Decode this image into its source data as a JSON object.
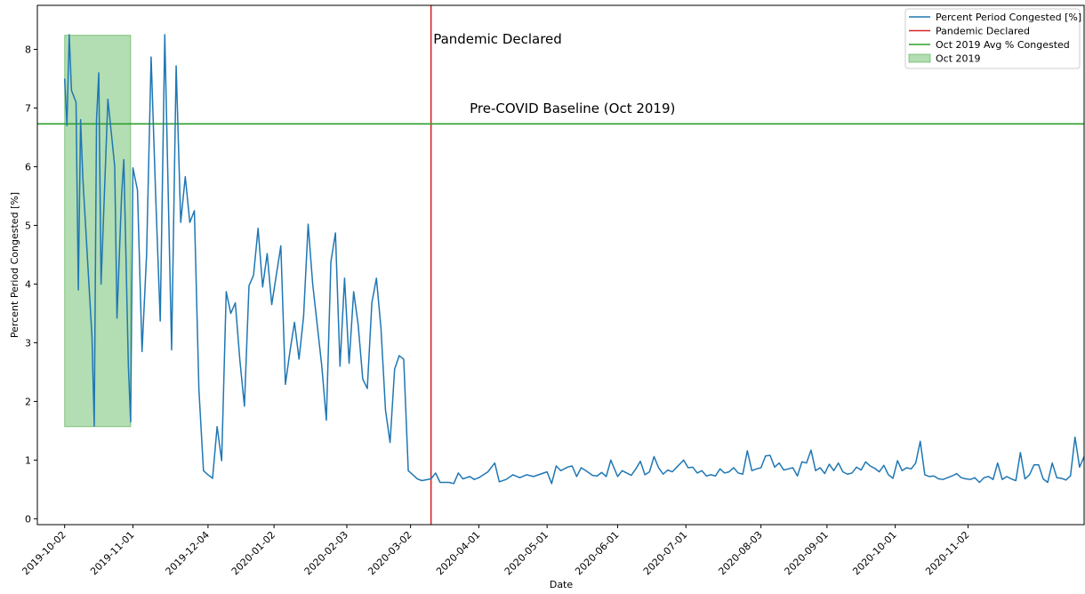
{
  "chart_data": {
    "type": "line",
    "title": "",
    "xlabel": "Date",
    "ylabel": "Percent Period Congested [%]",
    "xlim": [
      "2019-09-20",
      "2020-12-23"
    ],
    "ylim": [
      -0.1,
      8.75
    ],
    "grid": false,
    "legend_position": "top-right",
    "x_ticks": [
      "2019-10-02",
      "2019-11-01",
      "2019-12-04",
      "2020-01-02",
      "2020-02-03",
      "2020-03-02",
      "2020-04-01",
      "2020-05-01",
      "2020-06-01",
      "2020-07-01",
      "2020-08-03",
      "2020-09-01",
      "2020-10-01",
      "2020-11-02"
    ],
    "y_ticks": [
      0,
      1,
      2,
      3,
      4,
      5,
      6,
      7,
      8
    ],
    "series": [
      {
        "name": "Percent Period Congested [%]",
        "color": "#1f77b4",
        "points": [
          [
            "2019-10-02",
            7.5
          ],
          [
            "2019-10-03",
            6.7
          ],
          [
            "2019-10-04",
            8.25
          ],
          [
            "2019-10-05",
            7.3
          ],
          [
            "2019-10-07",
            7.1
          ],
          [
            "2019-10-08",
            3.9
          ],
          [
            "2019-10-09",
            6.8
          ],
          [
            "2019-10-10",
            5.8
          ],
          [
            "2019-10-14",
            3.1
          ],
          [
            "2019-10-15",
            1.58
          ],
          [
            "2019-10-16",
            6.8
          ],
          [
            "2019-10-17",
            7.6
          ],
          [
            "2019-10-18",
            4.0
          ],
          [
            "2019-10-21",
            7.15
          ],
          [
            "2019-10-24",
            6.0
          ],
          [
            "2019-10-25",
            3.42
          ],
          [
            "2019-10-27",
            5.5
          ],
          [
            "2019-10-28",
            6.12
          ],
          [
            "2019-10-30",
            2.6
          ],
          [
            "2019-10-31",
            1.65
          ],
          [
            "2019-11-01",
            5.98
          ],
          [
            "2019-11-03",
            5.6
          ],
          [
            "2019-11-05",
            2.85
          ],
          [
            "2019-11-07",
            4.5
          ],
          [
            "2019-11-09",
            7.87
          ],
          [
            "2019-11-11",
            5.5
          ],
          [
            "2019-11-13",
            3.37
          ],
          [
            "2019-11-15",
            8.25
          ],
          [
            "2019-11-18",
            2.88
          ],
          [
            "2019-11-20",
            7.72
          ],
          [
            "2019-11-22",
            5.05
          ],
          [
            "2019-11-24",
            5.83
          ],
          [
            "2019-11-26",
            5.05
          ],
          [
            "2019-11-28",
            5.25
          ],
          [
            "2019-11-30",
            2.2
          ],
          [
            "2019-12-02",
            0.82
          ],
          [
            "2019-12-04",
            0.75
          ],
          [
            "2019-12-06",
            0.69
          ],
          [
            "2019-12-08",
            1.57
          ],
          [
            "2019-12-10",
            0.99
          ],
          [
            "2019-12-12",
            3.87
          ],
          [
            "2019-12-14",
            3.5
          ],
          [
            "2019-12-16",
            3.68
          ],
          [
            "2019-12-18",
            2.7
          ],
          [
            "2019-12-20",
            1.92
          ],
          [
            "2019-12-22",
            3.97
          ],
          [
            "2019-12-24",
            4.15
          ],
          [
            "2019-12-26",
            4.95
          ],
          [
            "2019-12-28",
            3.95
          ],
          [
            "2019-12-30",
            4.52
          ],
          [
            "2020-01-01",
            3.65
          ],
          [
            "2020-01-03",
            4.15
          ],
          [
            "2020-01-05",
            4.65
          ],
          [
            "2020-01-07",
            2.29
          ],
          [
            "2020-01-09",
            2.85
          ],
          [
            "2020-01-11",
            3.35
          ],
          [
            "2020-01-13",
            2.72
          ],
          [
            "2020-01-15",
            3.45
          ],
          [
            "2020-01-17",
            5.02
          ],
          [
            "2020-01-19",
            4.0
          ],
          [
            "2020-01-21",
            3.3
          ],
          [
            "2020-01-23",
            2.6
          ],
          [
            "2020-01-25",
            1.68
          ],
          [
            "2020-01-27",
            4.38
          ],
          [
            "2020-01-29",
            4.87
          ],
          [
            "2020-01-31",
            2.6
          ],
          [
            "2020-02-02",
            4.1
          ],
          [
            "2020-02-04",
            2.65
          ],
          [
            "2020-02-06",
            3.87
          ],
          [
            "2020-02-08",
            3.3
          ],
          [
            "2020-02-10",
            2.38
          ],
          [
            "2020-02-12",
            2.22
          ],
          [
            "2020-02-14",
            3.68
          ],
          [
            "2020-02-16",
            4.1
          ],
          [
            "2020-02-18",
            3.25
          ],
          [
            "2020-02-20",
            1.85
          ],
          [
            "2020-02-22",
            1.3
          ],
          [
            "2020-02-24",
            2.55
          ],
          [
            "2020-02-26",
            2.78
          ],
          [
            "2020-02-28",
            2.72
          ],
          [
            "2020-03-01",
            0.82
          ],
          [
            "2020-03-05",
            0.68
          ],
          [
            "2020-03-07",
            0.65
          ],
          [
            "2020-03-11",
            0.68
          ],
          [
            "2020-03-13",
            0.78
          ],
          [
            "2020-03-15",
            0.62
          ],
          [
            "2020-03-19",
            0.62
          ],
          [
            "2020-03-21",
            0.6
          ],
          [
            "2020-03-23",
            0.78
          ],
          [
            "2020-03-25",
            0.68
          ],
          [
            "2020-03-28",
            0.72
          ],
          [
            "2020-03-30",
            0.67
          ],
          [
            "2020-04-01",
            0.7
          ],
          [
            "2020-04-05",
            0.8
          ],
          [
            "2020-04-08",
            0.95
          ],
          [
            "2020-04-10",
            0.63
          ],
          [
            "2020-04-13",
            0.67
          ],
          [
            "2020-04-16",
            0.75
          ],
          [
            "2020-04-19",
            0.7
          ],
          [
            "2020-04-22",
            0.75
          ],
          [
            "2020-04-25",
            0.72
          ],
          [
            "2020-04-28",
            0.76
          ],
          [
            "2020-05-01",
            0.8
          ],
          [
            "2020-05-03",
            0.6
          ],
          [
            "2020-05-05",
            0.9
          ],
          [
            "2020-05-07",
            0.82
          ],
          [
            "2020-05-10",
            0.88
          ],
          [
            "2020-05-12",
            0.9
          ],
          [
            "2020-05-14",
            0.72
          ],
          [
            "2020-05-16",
            0.87
          ],
          [
            "2020-05-18",
            0.82
          ],
          [
            "2020-05-21",
            0.74
          ],
          [
            "2020-05-23",
            0.73
          ],
          [
            "2020-05-25",
            0.79
          ],
          [
            "2020-05-27",
            0.72
          ],
          [
            "2020-05-29",
            1.0
          ],
          [
            "2020-06-01",
            0.72
          ],
          [
            "2020-06-03",
            0.82
          ],
          [
            "2020-06-05",
            0.78
          ],
          [
            "2020-06-07",
            0.74
          ],
          [
            "2020-06-09",
            0.85
          ],
          [
            "2020-06-11",
            0.98
          ],
          [
            "2020-06-13",
            0.75
          ],
          [
            "2020-06-15",
            0.8
          ],
          [
            "2020-06-17",
            1.06
          ],
          [
            "2020-06-19",
            0.87
          ],
          [
            "2020-06-21",
            0.76
          ],
          [
            "2020-06-23",
            0.83
          ],
          [
            "2020-06-25",
            0.8
          ],
          [
            "2020-06-27",
            0.88
          ],
          [
            "2020-06-30",
            1.0
          ],
          [
            "2020-07-02",
            0.87
          ],
          [
            "2020-07-04",
            0.88
          ],
          [
            "2020-07-06",
            0.78
          ],
          [
            "2020-07-08",
            0.82
          ],
          [
            "2020-07-10",
            0.73
          ],
          [
            "2020-07-12",
            0.75
          ],
          [
            "2020-07-14",
            0.73
          ],
          [
            "2020-07-16",
            0.85
          ],
          [
            "2020-07-18",
            0.78
          ],
          [
            "2020-07-20",
            0.8
          ],
          [
            "2020-07-22",
            0.87
          ],
          [
            "2020-07-24",
            0.78
          ],
          [
            "2020-07-26",
            0.76
          ],
          [
            "2020-07-28",
            1.16
          ],
          [
            "2020-07-30",
            0.82
          ],
          [
            "2020-08-01",
            0.85
          ],
          [
            "2020-08-03",
            0.87
          ],
          [
            "2020-08-05",
            1.07
          ],
          [
            "2020-08-07",
            1.08
          ],
          [
            "2020-08-09",
            0.88
          ],
          [
            "2020-08-11",
            0.95
          ],
          [
            "2020-08-13",
            0.83
          ],
          [
            "2020-08-15",
            0.85
          ],
          [
            "2020-08-17",
            0.87
          ],
          [
            "2020-08-19",
            0.73
          ],
          [
            "2020-08-21",
            0.97
          ],
          [
            "2020-08-23",
            0.95
          ],
          [
            "2020-08-25",
            1.17
          ],
          [
            "2020-08-27",
            0.82
          ],
          [
            "2020-08-29",
            0.87
          ],
          [
            "2020-08-31",
            0.77
          ],
          [
            "2020-09-02",
            0.93
          ],
          [
            "2020-09-04",
            0.82
          ],
          [
            "2020-09-06",
            0.95
          ],
          [
            "2020-09-08",
            0.8
          ],
          [
            "2020-09-10",
            0.76
          ],
          [
            "2020-09-12",
            0.78
          ],
          [
            "2020-09-14",
            0.88
          ],
          [
            "2020-09-16",
            0.83
          ],
          [
            "2020-09-18",
            0.97
          ],
          [
            "2020-09-20",
            0.9
          ],
          [
            "2020-09-22",
            0.86
          ],
          [
            "2020-09-24",
            0.8
          ],
          [
            "2020-09-26",
            0.91
          ],
          [
            "2020-09-28",
            0.75
          ],
          [
            "2020-09-30",
            0.69
          ],
          [
            "2020-10-02",
            0.99
          ],
          [
            "2020-10-04",
            0.82
          ],
          [
            "2020-10-06",
            0.87
          ],
          [
            "2020-10-08",
            0.85
          ],
          [
            "2020-10-10",
            0.95
          ],
          [
            "2020-10-12",
            1.32
          ],
          [
            "2020-10-14",
            0.75
          ],
          [
            "2020-10-16",
            0.72
          ],
          [
            "2020-10-18",
            0.73
          ],
          [
            "2020-10-20",
            0.68
          ],
          [
            "2020-10-22",
            0.67
          ],
          [
            "2020-10-24",
            0.7
          ],
          [
            "2020-10-26",
            0.73
          ],
          [
            "2020-10-28",
            0.77
          ],
          [
            "2020-10-30",
            0.7
          ],
          [
            "2020-11-01",
            0.68
          ],
          [
            "2020-11-03",
            0.67
          ],
          [
            "2020-11-05",
            0.7
          ],
          [
            "2020-11-07",
            0.62
          ],
          [
            "2020-11-09",
            0.7
          ],
          [
            "2020-11-11",
            0.72
          ],
          [
            "2020-11-13",
            0.67
          ],
          [
            "2020-11-15",
            0.95
          ],
          [
            "2020-11-17",
            0.67
          ],
          [
            "2020-11-19",
            0.72
          ],
          [
            "2020-11-21",
            0.68
          ],
          [
            "2020-11-23",
            0.65
          ],
          [
            "2020-11-25",
            1.13
          ],
          [
            "2020-11-27",
            0.68
          ],
          [
            "2020-11-29",
            0.75
          ],
          [
            "2020-12-01",
            0.92
          ],
          [
            "2020-12-03",
            0.92
          ],
          [
            "2020-12-05",
            0.68
          ],
          [
            "2020-12-07",
            0.62
          ],
          [
            "2020-12-09",
            0.95
          ],
          [
            "2020-12-11",
            0.7
          ],
          [
            "2020-12-13",
            0.69
          ],
          [
            "2020-12-15",
            0.66
          ],
          [
            "2020-12-17",
            0.73
          ],
          [
            "2020-12-19",
            1.39
          ],
          [
            "2020-12-21",
            0.88
          ],
          [
            "2020-12-23",
            1.06
          ]
        ]
      }
    ],
    "reference_lines": [
      {
        "name": "Pandemic Declared",
        "orientation": "vertical",
        "x": "2020-03-11",
        "color": "#d62728"
      },
      {
        "name": "Oct 2019 Avg % Congested",
        "orientation": "horizontal",
        "y": 6.73,
        "color": "#2ca02c"
      }
    ],
    "shaded_regions": [
      {
        "name": "Oct 2019",
        "x_start": "2019-10-02",
        "x_end": "2019-10-31",
        "y_start": 1.57,
        "y_end": 8.24,
        "color": "#2ca02c"
      }
    ],
    "annotations": [
      {
        "text": "Pandemic Declared",
        "x": "2020-03-12",
        "y": 8.1
      },
      {
        "text": "Pre-COVID Baseline (Oct 2019)",
        "x": "2020-03-28",
        "y": 6.92
      }
    ]
  }
}
